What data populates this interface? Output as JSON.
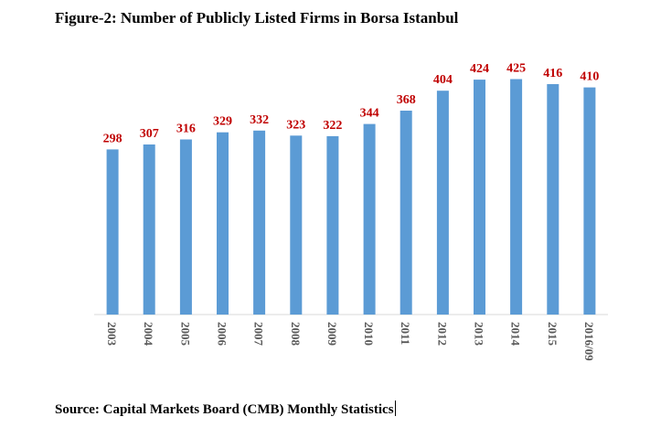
{
  "title": "Figure-2: Number of Publicly Listed Firms in Borsa Istanbul",
  "source": "Source: Capital Markets Board (CMB) Monthly Statistics",
  "colors": {
    "bar": "#5b9bd5",
    "data_label": "#c00000",
    "tick_label": "#595959"
  },
  "chart_data": {
    "type": "bar",
    "title": "Figure-2: Number of Publicly Listed Firms in Borsa Istanbul",
    "xlabel": "",
    "ylabel": "",
    "categories": [
      "2003",
      "2004",
      "2005",
      "2006",
      "2007",
      "2008",
      "2009",
      "2010",
      "2011",
      "2012",
      "2013",
      "2014",
      "2015",
      "2016/09"
    ],
    "values": [
      298,
      307,
      316,
      329,
      332,
      323,
      322,
      344,
      368,
      404,
      424,
      425,
      416,
      410
    ],
    "ylim": [
      0,
      450
    ],
    "grid": false,
    "legend": "none",
    "data_labels": true
  }
}
